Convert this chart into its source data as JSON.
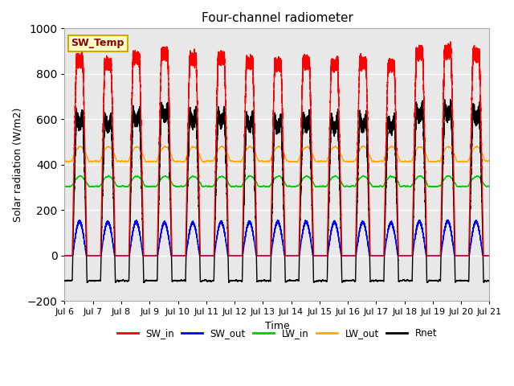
{
  "title": "Four-channel radiometer",
  "xlabel": "Time",
  "ylabel": "Solar radiation (W/m2)",
  "ylim": [
    -200,
    1000
  ],
  "xlim_days": [
    6,
    21
  ],
  "bg_color": "#e8e8e8",
  "grid_color": "white",
  "annotation_text": "SW_Temp",
  "annotation_color": "#8b0000",
  "annotation_bg": "#ffffcc",
  "annotation_border": "#ccaa00",
  "colors": {
    "SW_in": "#ff0000",
    "SW_out": "#0000ff",
    "LW_in": "#00cc00",
    "LW_out": "#ffaa00",
    "Rnet": "#000000"
  },
  "n_days": 15,
  "start_day": 6,
  "sw_in_peaks": [
    860,
    840,
    870,
    890,
    865,
    870,
    848,
    840,
    853,
    840,
    850,
    836,
    890,
    898,
    880
  ],
  "sw_out_peaks": [
    150,
    148,
    148,
    145,
    145,
    148,
    148,
    148,
    148,
    148,
    148,
    145,
    150,
    152,
    150
  ],
  "lw_in_base": 305,
  "lw_in_amp": 45,
  "lw_out_base": 415,
  "lw_out_amp": 65,
  "rnet_night": -130,
  "samples_per_day": 1440
}
